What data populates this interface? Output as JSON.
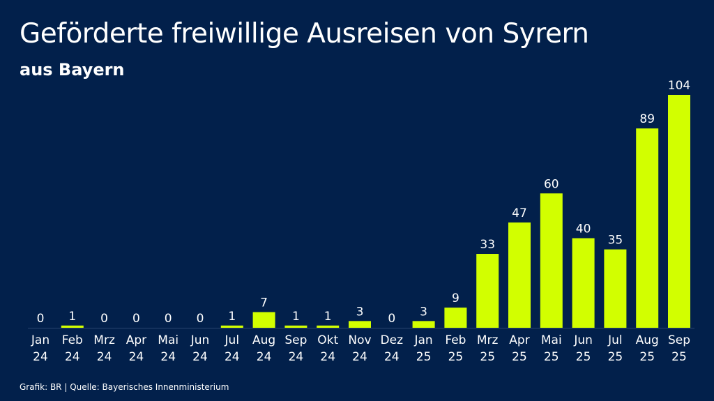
{
  "header": {
    "title": "Geförderte freiwillige Ausreisen von Syrern",
    "subtitle": "aus Bayern"
  },
  "footer": {
    "source": "Grafik: BR | Quelle: Bayerisches Innenministerium"
  },
  "colors": {
    "background": "#02204b",
    "bar": "#d2ff00",
    "text": "#ffffff"
  },
  "chart_data": {
    "type": "bar",
    "title": "Geförderte freiwillige Ausreisen von Syrern",
    "subtitle": "aus Bayern",
    "categories": [
      [
        "Jan",
        "24"
      ],
      [
        "Feb",
        "24"
      ],
      [
        "Mrz",
        "24"
      ],
      [
        "Apr",
        "24"
      ],
      [
        "Mai",
        "24"
      ],
      [
        "Jun",
        "24"
      ],
      [
        "Jul",
        "24"
      ],
      [
        "Aug",
        "24"
      ],
      [
        "Sep",
        "24"
      ],
      [
        "Okt",
        "24"
      ],
      [
        "Nov",
        "24"
      ],
      [
        "Dez",
        "24"
      ],
      [
        "Jan",
        "25"
      ],
      [
        "Feb",
        "25"
      ],
      [
        "Mrz",
        "25"
      ],
      [
        "Apr",
        "25"
      ],
      [
        "Mai",
        "25"
      ],
      [
        "Jun",
        "25"
      ],
      [
        "Jul",
        "25"
      ],
      [
        "Aug",
        "25"
      ],
      [
        "Sep",
        "25"
      ]
    ],
    "values": [
      0,
      1,
      0,
      0,
      0,
      0,
      1,
      7,
      1,
      1,
      3,
      0,
      3,
      9,
      33,
      47,
      60,
      40,
      35,
      89,
      104
    ],
    "xlabel": "",
    "ylabel": "",
    "ylim": [
      0,
      104
    ],
    "grid": false,
    "data_labels": true
  }
}
